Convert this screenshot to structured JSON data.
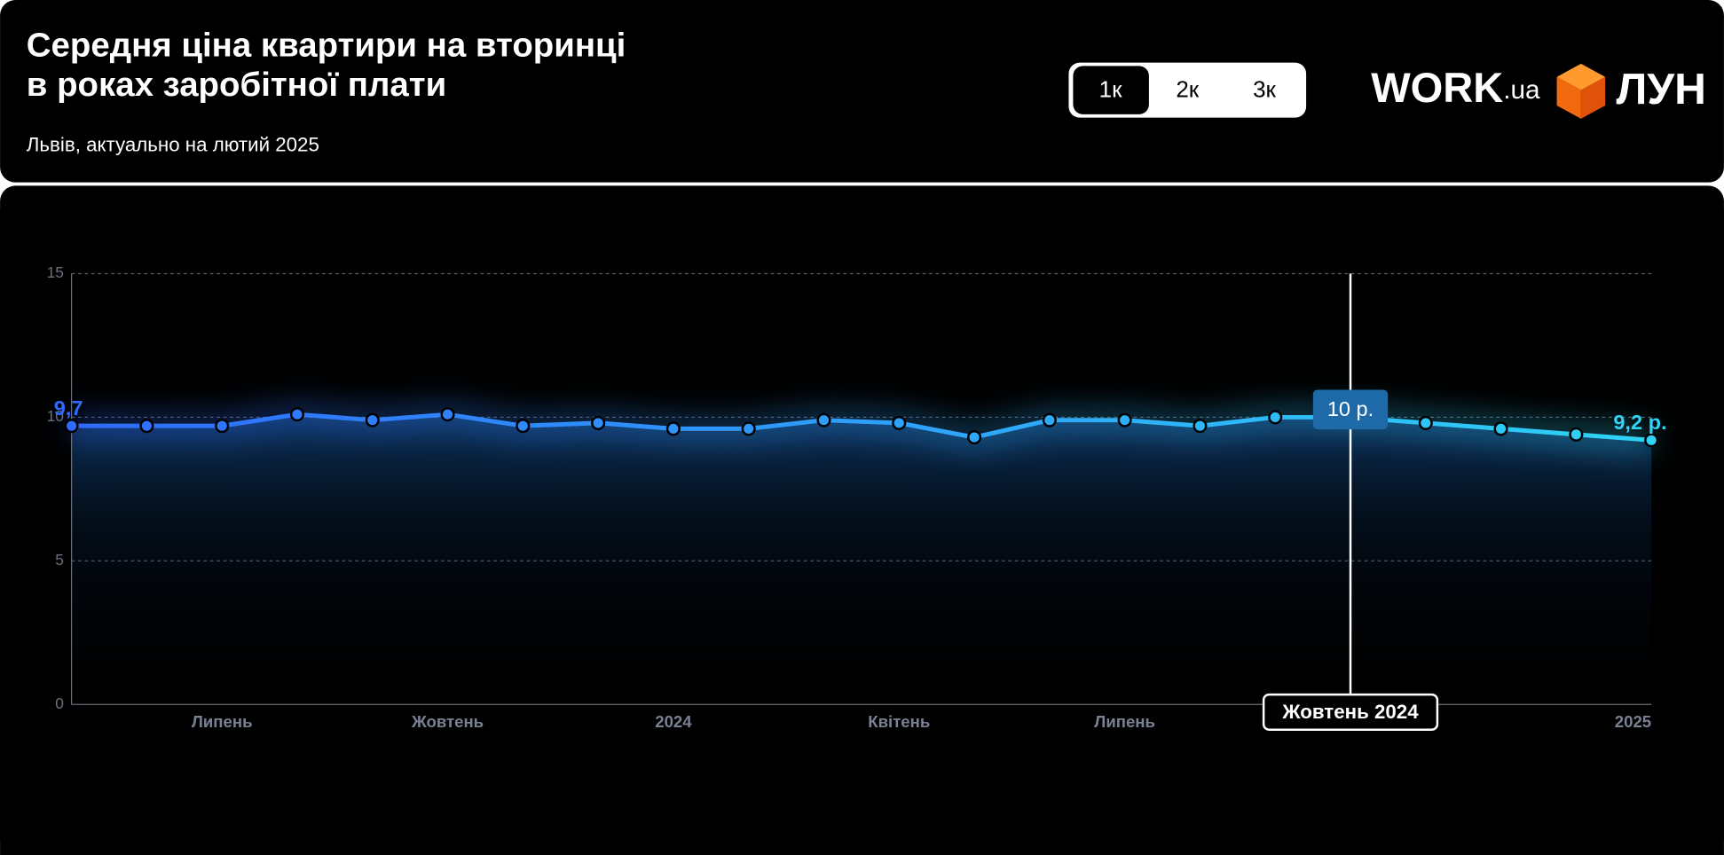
{
  "header": {
    "title": [
      "Середня ціна квартири на вторинці",
      "в роках заробітної плати"
    ],
    "subtitle": "Львів, актуально на лютий 2025"
  },
  "tabs": [
    "1к",
    "2к",
    "3к"
  ],
  "logos": {
    "work": "WORK",
    "work_suffix": ".ua",
    "lun": "ЛУН"
  },
  "chart_data": {
    "type": "line",
    "categories": [
      null,
      null,
      "Липень",
      null,
      null,
      "Жовтень",
      null,
      null,
      "2024",
      null,
      null,
      "Квітень",
      null,
      null,
      "Липень",
      null,
      null,
      "Жовтень 2024",
      null,
      null,
      null,
      "2025"
    ],
    "values": [
      9.7,
      9.7,
      9.7,
      10.1,
      9.9,
      10.1,
      9.7,
      9.8,
      9.6,
      9.6,
      9.9,
      9.8,
      9.3,
      9.9,
      9.9,
      9.7,
      10.0,
      10.0,
      9.8,
      9.6,
      9.4,
      9.2
    ],
    "value_labels": [
      "9,7",
      null,
      null,
      null,
      null,
      null,
      null,
      null,
      null,
      null,
      null,
      null,
      null,
      null,
      null,
      null,
      null,
      "10 р.",
      null,
      null,
      null,
      "9,2 р."
    ],
    "gradient": [
      "#2f6bff",
      "#2ed3f5"
    ],
    "ylim": [
      0,
      15
    ],
    "yticks": [
      0,
      5,
      10,
      15
    ],
    "grid": true
  }
}
